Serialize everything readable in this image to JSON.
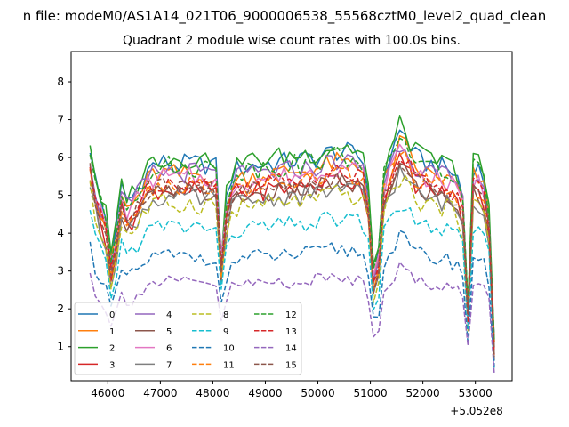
{
  "suptitle": "n file: modeM0/AS1A14_021T06_9000006538_55568cztM0_level2_quad_clean",
  "chart_data": {
    "type": "line",
    "title": "Quadrant 2 module wise count rates with 100.0s bins.",
    "xlabel": "",
    "ylabel": "",
    "x_offset_label": "+5.052e8",
    "x_offset": 505200000,
    "xlim": [
      45300,
      53700
    ],
    "ylim": [
      0.1,
      8.8
    ],
    "xticks": [
      46000,
      47000,
      48000,
      49000,
      50000,
      51000,
      52000,
      53000
    ],
    "xtick_labels": [
      "46000",
      "47000",
      "48000",
      "49000",
      "50000",
      "51000",
      "52000",
      "53000"
    ],
    "yticks": [
      1,
      2,
      3,
      4,
      5,
      6,
      7,
      8
    ],
    "ytick_labels": [
      "1",
      "2",
      "3",
      "4",
      "5",
      "6",
      "7",
      "8"
    ],
    "grid": false,
    "legend": {
      "placement": "lower-left",
      "columns": 4
    },
    "shape_anchors": [
      [
        45660,
        1.0
      ],
      [
        45800,
        0.8
      ],
      [
        45950,
        0.72
      ],
      [
        46050,
        0.52
      ],
      [
        46150,
        0.62
      ],
      [
        46250,
        0.83
      ],
      [
        46400,
        0.76
      ],
      [
        46550,
        0.82
      ],
      [
        46700,
        0.88
      ],
      [
        46850,
        0.92
      ],
      [
        47000,
        0.93
      ],
      [
        47200,
        0.93
      ],
      [
        47400,
        0.92
      ],
      [
        47600,
        0.93
      ],
      [
        47800,
        0.92
      ],
      [
        48000,
        0.93
      ],
      [
        48100,
        0.9
      ],
      [
        48180,
        0.42
      ],
      [
        48280,
        0.86
      ],
      [
        48500,
        0.91
      ],
      [
        48800,
        0.92
      ],
      [
        49200,
        0.93
      ],
      [
        49600,
        0.94
      ],
      [
        50000,
        0.95
      ],
      [
        50300,
        0.98
      ],
      [
        50600,
        0.97
      ],
      [
        50850,
        0.95
      ],
      [
        50950,
        0.85
      ],
      [
        51100,
        0.32
      ],
      [
        51250,
        0.88
      ],
      [
        51450,
        1.0
      ],
      [
        51600,
        1.08
      ],
      [
        51750,
        1.0
      ],
      [
        51900,
        0.94
      ],
      [
        52200,
        0.92
      ],
      [
        52500,
        0.9
      ],
      [
        52750,
        0.85
      ],
      [
        52850,
        0.25
      ],
      [
        52950,
        0.92
      ],
      [
        53100,
        0.9
      ],
      [
        53250,
        0.8
      ],
      [
        53350,
        0.15
      ]
    ],
    "x_start": 45660,
    "x_step": 100,
    "x_end": 53360,
    "series": [
      {
        "name": "0",
        "level": 6.3,
        "style": "solid",
        "color": "#1f77b4"
      },
      {
        "name": "1",
        "level": 6.0,
        "style": "solid",
        "color": "#ff7f0e"
      },
      {
        "name": "2",
        "level": 6.45,
        "style": "solid",
        "color": "#2ca02c"
      },
      {
        "name": "3",
        "level": 5.55,
        "style": "solid",
        "color": "#d62728"
      },
      {
        "name": "4",
        "level": 6.05,
        "style": "solid",
        "color": "#9467bd"
      },
      {
        "name": "5",
        "level": 5.45,
        "style": "solid",
        "color": "#8c564b"
      },
      {
        "name": "6",
        "level": 5.9,
        "style": "solid",
        "color": "#e377c2"
      },
      {
        "name": "7",
        "level": 5.3,
        "style": "solid",
        "color": "#7f7f7f"
      },
      {
        "name": "8",
        "level": 5.15,
        "style": "dashed",
        "color": "#bcbd22"
      },
      {
        "name": "9",
        "level": 4.5,
        "style": "dashed",
        "color": "#17becf"
      },
      {
        "name": "10",
        "level": 3.65,
        "style": "dashed",
        "color": "#1f77b4"
      },
      {
        "name": "11",
        "level": 5.7,
        "style": "dashed",
        "color": "#ff7f0e"
      },
      {
        "name": "12",
        "level": 6.2,
        "style": "dashed",
        "color": "#2ca02c"
      },
      {
        "name": "13",
        "level": 5.75,
        "style": "dashed",
        "color": "#d62728"
      },
      {
        "name": "14",
        "level": 2.9,
        "style": "dashed",
        "color": "#9467bd"
      },
      {
        "name": "15",
        "level": 5.6,
        "style": "dashed",
        "color": "#8c564b"
      }
    ]
  }
}
